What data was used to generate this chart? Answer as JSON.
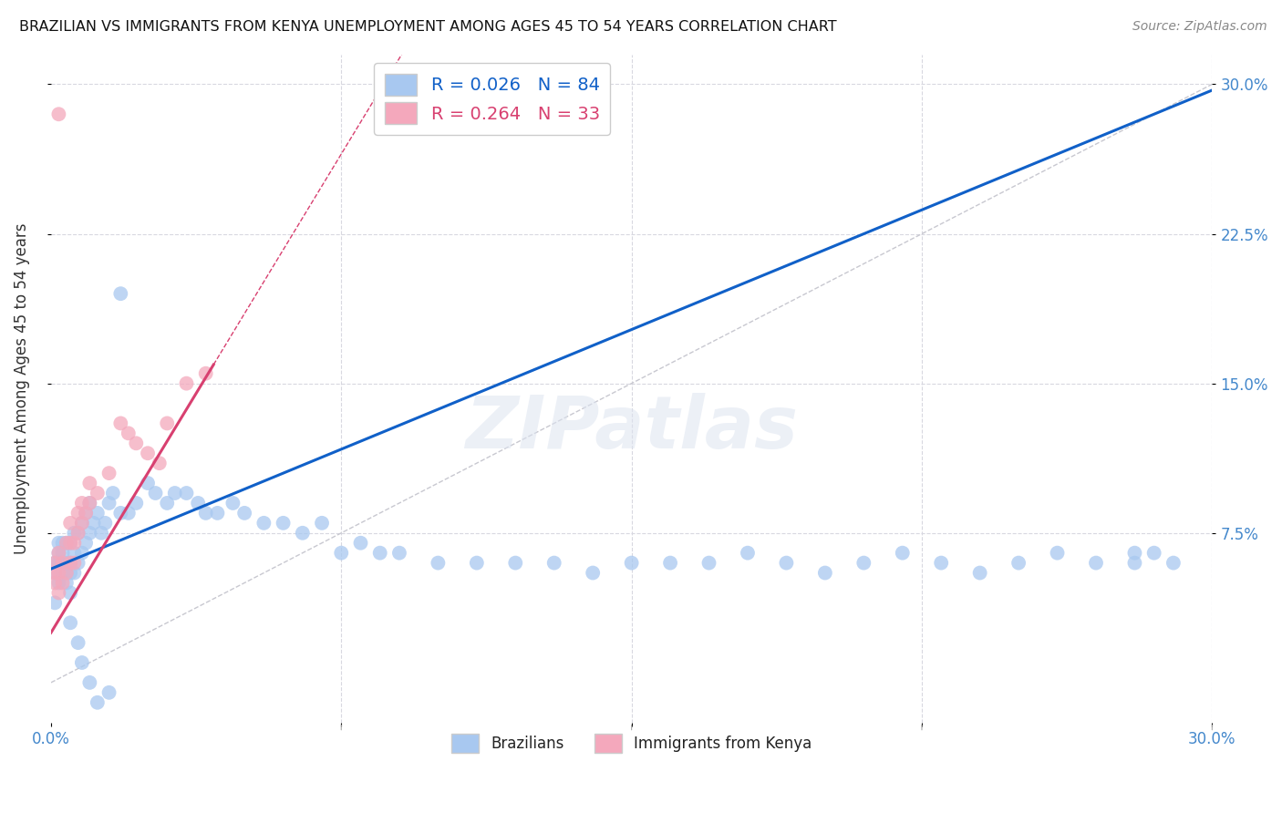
{
  "title": "BRAZILIAN VS IMMIGRANTS FROM KENYA UNEMPLOYMENT AMONG AGES 45 TO 54 YEARS CORRELATION CHART",
  "source": "Source: ZipAtlas.com",
  "ylabel": "Unemployment Among Ages 45 to 54 years",
  "xlim": [
    0.0,
    0.3
  ],
  "ylim": [
    -0.02,
    0.315
  ],
  "R_blue": 0.026,
  "N_blue": 84,
  "R_pink": 0.264,
  "N_pink": 33,
  "blue_color": "#a8c8f0",
  "pink_color": "#f4a8bc",
  "blue_line_color": "#1060c8",
  "pink_line_color": "#d84070",
  "ref_line_color": "#c8c8d0",
  "background_color": "#ffffff",
  "grid_color": "#d8d8e0",
  "blue_x": [
    0.001,
    0.001,
    0.001,
    0.002,
    0.002,
    0.002,
    0.002,
    0.003,
    0.003,
    0.003,
    0.004,
    0.004,
    0.004,
    0.005,
    0.005,
    0.005,
    0.005,
    0.006,
    0.006,
    0.006,
    0.007,
    0.007,
    0.008,
    0.008,
    0.009,
    0.009,
    0.01,
    0.01,
    0.011,
    0.012,
    0.013,
    0.014,
    0.015,
    0.016,
    0.018,
    0.02,
    0.022,
    0.025,
    0.027,
    0.03,
    0.032,
    0.035,
    0.038,
    0.04,
    0.043,
    0.047,
    0.05,
    0.055,
    0.06,
    0.065,
    0.07,
    0.075,
    0.08,
    0.085,
    0.09,
    0.1,
    0.11,
    0.12,
    0.13,
    0.14,
    0.15,
    0.16,
    0.17,
    0.18,
    0.19,
    0.2,
    0.21,
    0.22,
    0.23,
    0.24,
    0.25,
    0.26,
    0.27,
    0.28,
    0.285,
    0.29,
    0.005,
    0.007,
    0.008,
    0.01,
    0.012,
    0.015,
    0.018,
    0.28
  ],
  "blue_y": [
    0.055,
    0.06,
    0.04,
    0.05,
    0.06,
    0.065,
    0.07,
    0.055,
    0.065,
    0.07,
    0.05,
    0.06,
    0.07,
    0.045,
    0.055,
    0.06,
    0.07,
    0.055,
    0.065,
    0.075,
    0.06,
    0.075,
    0.065,
    0.08,
    0.07,
    0.085,
    0.075,
    0.09,
    0.08,
    0.085,
    0.075,
    0.08,
    0.09,
    0.095,
    0.085,
    0.085,
    0.09,
    0.1,
    0.095,
    0.09,
    0.095,
    0.095,
    0.09,
    0.085,
    0.085,
    0.09,
    0.085,
    0.08,
    0.08,
    0.075,
    0.08,
    0.065,
    0.07,
    0.065,
    0.065,
    0.06,
    0.06,
    0.06,
    0.06,
    0.055,
    0.06,
    0.06,
    0.06,
    0.065,
    0.06,
    0.055,
    0.06,
    0.065,
    0.06,
    0.055,
    0.06,
    0.065,
    0.06,
    0.06,
    0.065,
    0.06,
    0.03,
    0.02,
    0.01,
    0.0,
    -0.01,
    -0.005,
    0.195,
    0.065
  ],
  "pink_x": [
    0.001,
    0.001,
    0.001,
    0.002,
    0.002,
    0.002,
    0.003,
    0.003,
    0.004,
    0.004,
    0.005,
    0.005,
    0.005,
    0.006,
    0.006,
    0.007,
    0.007,
    0.008,
    0.008,
    0.009,
    0.01,
    0.01,
    0.012,
    0.015,
    0.018,
    0.02,
    0.022,
    0.025,
    0.028,
    0.03,
    0.035,
    0.04,
    0.002
  ],
  "pink_y": [
    0.055,
    0.05,
    0.06,
    0.045,
    0.055,
    0.065,
    0.05,
    0.06,
    0.055,
    0.07,
    0.06,
    0.07,
    0.08,
    0.06,
    0.07,
    0.075,
    0.085,
    0.08,
    0.09,
    0.085,
    0.09,
    0.1,
    0.095,
    0.105,
    0.13,
    0.125,
    0.12,
    0.115,
    0.11,
    0.13,
    0.15,
    0.155,
    0.285
  ]
}
